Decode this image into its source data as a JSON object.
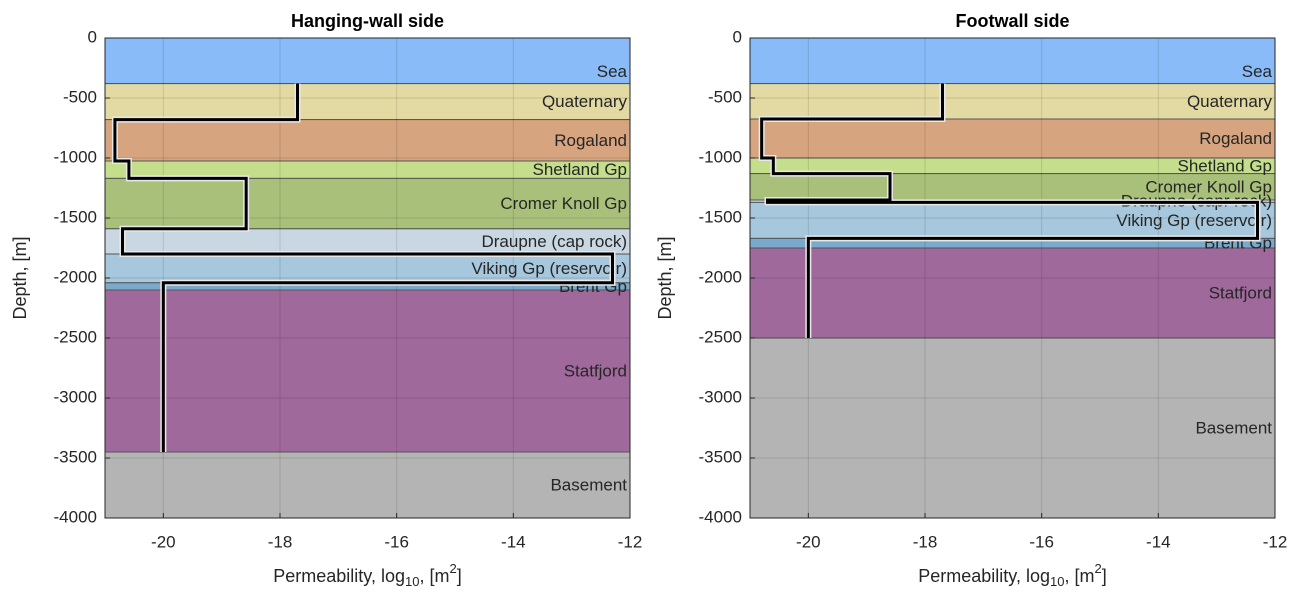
{
  "chart_data": [
    {
      "type": "line",
      "title": "Hanging-wall side",
      "ylabel": "Depth, [m]",
      "xlabel": {
        "text": "Permeability, log",
        "sub": "10",
        "mid": ", [m",
        "sup": "2",
        "end": "]"
      },
      "xlim": [
        -21,
        -12
      ],
      "ylim": [
        -4000,
        0
      ],
      "xticks": [
        -20,
        -18,
        -16,
        -14,
        -12
      ],
      "yticks": [
        0,
        -500,
        -1000,
        -1500,
        -2000,
        -2500,
        -3000,
        -3500,
        -4000
      ],
      "grid": true,
      "layers": [
        {
          "name": "Sea",
          "top": 0,
          "bottom": -380,
          "color": "#88bbf7"
        },
        {
          "name": "Quaternary",
          "top": -380,
          "bottom": -680,
          "color": "#e2daa2"
        },
        {
          "name": "Rogaland",
          "top": -680,
          "bottom": -1025,
          "color": "#d6a47f"
        },
        {
          "name": "Shetland Gp",
          "top": -1025,
          "bottom": -1170,
          "color": "#c4de8c"
        },
        {
          "name": "Cromer Knoll Gp",
          "top": -1170,
          "bottom": -1590,
          "color": "#a9c07b"
        },
        {
          "name": "Draupne (cap rock)",
          "top": -1590,
          "bottom": -1800,
          "color": "#c9d7e3"
        },
        {
          "name": "Viking Gp (reservoir)",
          "top": -1800,
          "bottom": -2040,
          "color": "#a7c7dc"
        },
        {
          "name": "Brent Gp",
          "top": -2040,
          "bottom": -2100,
          "color": "#79a9cd"
        },
        {
          "name": "Statfjord",
          "top": -2100,
          "bottom": -3450,
          "color": "#a0699b"
        },
        {
          "name": "Basement",
          "top": -3450,
          "bottom": -4000,
          "color": "#b4b4b4"
        }
      ],
      "series": [
        {
          "color": "#000000",
          "x": [
            -17.7,
            -17.7,
            -20.83,
            -20.83,
            -20.59,
            -20.59,
            -18.58,
            -18.58,
            -20.7,
            -20.7,
            -12.3,
            -12.3,
            -20,
            -20
          ],
          "y": [
            -380,
            -680,
            -680,
            -1025,
            -1025,
            -1170,
            -1170,
            -1590,
            -1590,
            -1800,
            -1800,
            -2040,
            -2040,
            -3450
          ]
        }
      ]
    },
    {
      "type": "line",
      "title": "Footwall side",
      "ylabel": "Depth, [m]",
      "xlabel": {
        "text": "Permeability, log",
        "sub": "10",
        "mid": ", [m",
        "sup": "2",
        "end": "]"
      },
      "xlim": [
        -21,
        -12
      ],
      "ylim": [
        -4000,
        0
      ],
      "xticks": [
        -20,
        -18,
        -16,
        -14,
        -12
      ],
      "yticks": [
        0,
        -500,
        -1000,
        -1500,
        -2000,
        -2500,
        -3000,
        -3500,
        -4000
      ],
      "grid": true,
      "layers": [
        {
          "name": "Sea",
          "top": 0,
          "bottom": -380,
          "color": "#88bbf7"
        },
        {
          "name": "Quaternary",
          "top": -380,
          "bottom": -675,
          "color": "#e2daa2"
        },
        {
          "name": "Rogaland",
          "top": -675,
          "bottom": -1000,
          "color": "#d6a47f"
        },
        {
          "name": "Shetland Gp",
          "top": -1000,
          "bottom": -1130,
          "color": "#c4de8c"
        },
        {
          "name": "Cromer Knoll Gp",
          "top": -1130,
          "bottom": -1350,
          "color": "#a9c07b"
        },
        {
          "name": "Draupne (capr rock)",
          "top": -1350,
          "bottom": -1370,
          "color": "#c9d7e3"
        },
        {
          "name": "Viking Gp (reservoir)",
          "top": -1370,
          "bottom": -1670,
          "color": "#a7c7dc"
        },
        {
          "name": "Brent Gp",
          "top": -1670,
          "bottom": -1750,
          "color": "#79a9cd"
        },
        {
          "name": "Statfjord",
          "top": -1750,
          "bottom": -2500,
          "color": "#a0699b"
        },
        {
          "name": "Basement",
          "top": -2500,
          "bottom": -4000,
          "color": "#b4b4b4"
        }
      ],
      "series": [
        {
          "color": "#000000",
          "x": [
            -17.7,
            -17.7,
            -20.8,
            -20.8,
            -20.6,
            -20.6,
            -18.6,
            -18.6,
            -20.7,
            -20.7,
            -12.3,
            -12.3,
            -20,
            -20
          ],
          "y": [
            -380,
            -675,
            -675,
            -1000,
            -1000,
            -1130,
            -1130,
            -1350,
            -1350,
            -1370,
            -1370,
            -1670,
            -1670,
            -2500
          ]
        }
      ]
    }
  ]
}
